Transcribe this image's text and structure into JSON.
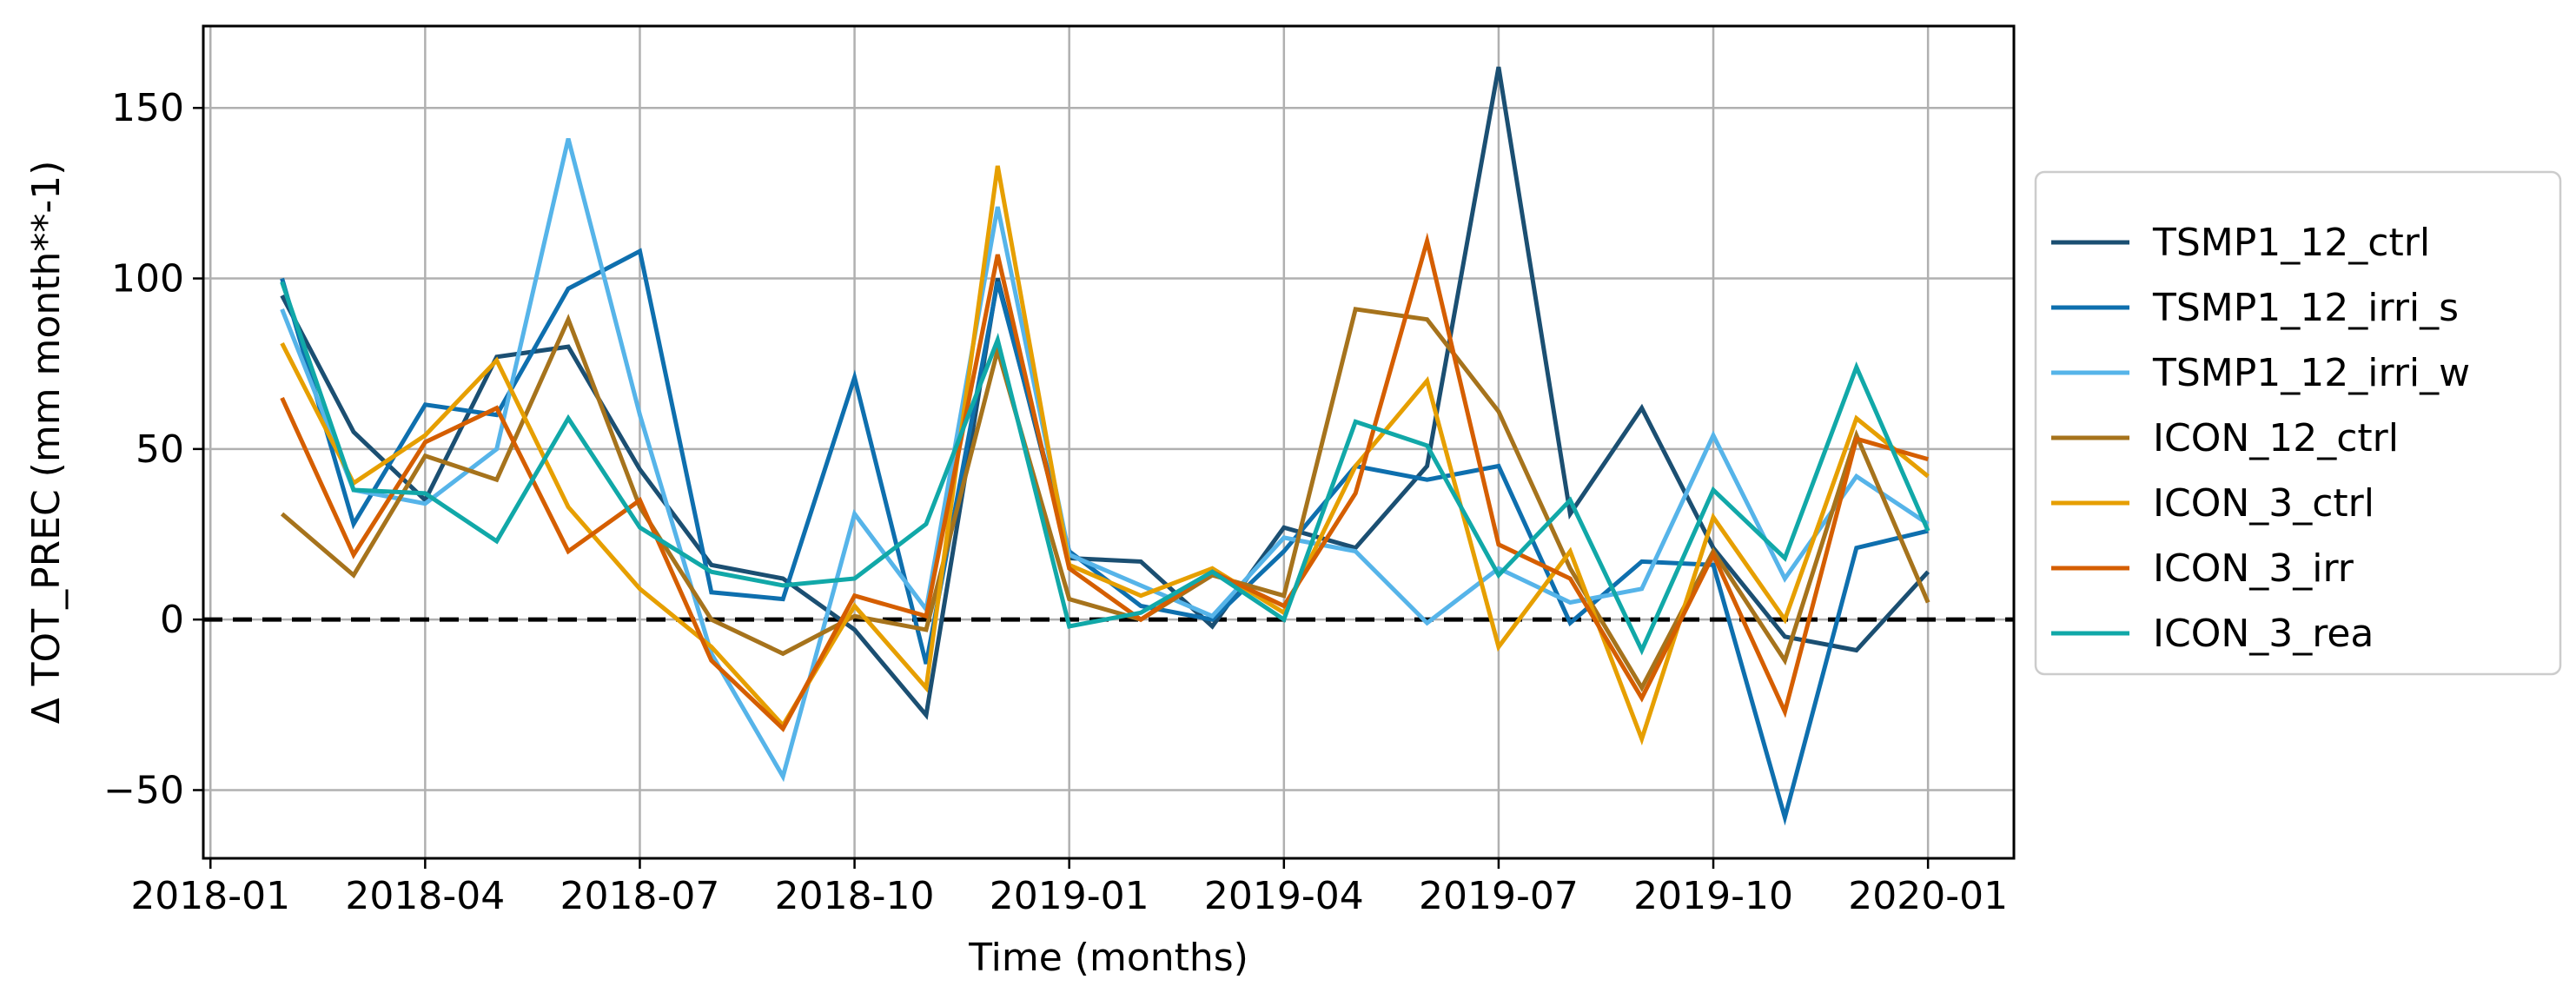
{
  "chart_data": {
    "type": "line",
    "title": "",
    "xlabel": "Time (months)",
    "ylabel": "Δ TOT_PREC (mm month**-1)",
    "ylim": [
      -70,
      174
    ],
    "yticks": [
      -50,
      0,
      50,
      100,
      150
    ],
    "ytick_labels": [
      "−50",
      "0",
      "50",
      "100",
      "150"
    ],
    "xlim_months": [
      -0.1,
      25.2
    ],
    "xticks_months": [
      0,
      3,
      6,
      9,
      12,
      15,
      18,
      21,
      24
    ],
    "xtick_labels": [
      "2018-01",
      "2018-04",
      "2018-07",
      "2018-10",
      "2019-01",
      "2019-04",
      "2019-07",
      "2019-10",
      "2020-01"
    ],
    "x": [
      1,
      2,
      3,
      4,
      5,
      6,
      7,
      8,
      9,
      10,
      11,
      12,
      13,
      14,
      15,
      16,
      17,
      18,
      19,
      20,
      21,
      22,
      23,
      24
    ],
    "x_dates": [
      "2018-02",
      "2018-03",
      "2018-04",
      "2018-05",
      "2018-06",
      "2018-07",
      "2018-08",
      "2018-09",
      "2018-10",
      "2018-11",
      "2018-12",
      "2019-01",
      "2019-02",
      "2019-03",
      "2019-04",
      "2019-05",
      "2019-06",
      "2019-07",
      "2019-08",
      "2019-09",
      "2019-10",
      "2019-11",
      "2019-12",
      "2020-01"
    ],
    "grid": true,
    "legend_position": "outside-right",
    "reference_line": {
      "y": 0,
      "style": "dashed",
      "color": "#000000"
    },
    "series": [
      {
        "name": "TSMP1_12_ctrl",
        "color": "#1b4f72",
        "values": [
          95,
          55,
          35,
          77,
          80,
          44,
          16,
          12,
          -3,
          -28,
          100,
          18,
          17,
          -2,
          27,
          21,
          45,
          162,
          31,
          62,
          21,
          -5,
          -9,
          14
        ]
      },
      {
        "name": "TSMP1_12_irri_s",
        "color": "#0e6fae",
        "values": [
          100,
          28,
          63,
          60,
          97,
          108,
          8,
          6,
          71,
          -13,
          99,
          20,
          4,
          0,
          20,
          45,
          41,
          45,
          -1,
          17,
          16,
          -58,
          21,
          26
        ]
      },
      {
        "name": "TSMP1_12_irri_w",
        "color": "#56b4e9",
        "values": [
          91,
          38,
          34,
          50,
          141,
          60,
          -10,
          -46,
          31,
          3,
          121,
          19,
          10,
          1,
          24,
          20,
          -1,
          15,
          5,
          9,
          54,
          12,
          42,
          28
        ]
      },
      {
        "name": "ICON_12_ctrl",
        "color": "#a6731c",
        "values": [
          31,
          13,
          48,
          41,
          88,
          33,
          0,
          -10,
          1,
          -3,
          79,
          6,
          0,
          13,
          7,
          91,
          88,
          61,
          15,
          -20,
          20,
          -12,
          54,
          5
        ]
      },
      {
        "name": "ICON_3_ctrl",
        "color": "#e69f00",
        "values": [
          81,
          40,
          54,
          76,
          33,
          9,
          -8,
          -31,
          4,
          -20,
          133,
          16,
          7,
          15,
          2,
          45,
          70,
          -8,
          20,
          -35,
          30,
          0,
          59,
          42
        ]
      },
      {
        "name": "ICON_3_irr",
        "color": "#d55e00",
        "values": [
          65,
          19,
          52,
          62,
          20,
          35,
          -12,
          -32,
          7,
          1,
          107,
          15,
          0,
          14,
          4,
          37,
          111,
          22,
          12,
          -23,
          19,
          -27,
          53,
          47
        ]
      },
      {
        "name": "ICON_3_rea",
        "color": "#11a8a8",
        "values": [
          99,
          38,
          37,
          23,
          59,
          27,
          14,
          10,
          12,
          28,
          82,
          -2,
          2,
          14,
          0,
          58,
          51,
          13,
          35,
          -9,
          38,
          18,
          74,
          26
        ]
      }
    ]
  }
}
